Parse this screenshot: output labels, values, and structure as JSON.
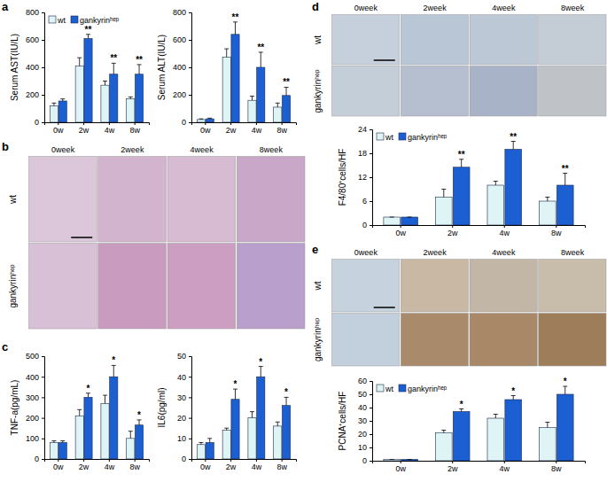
{
  "chart_data": [
    {
      "type": "bar",
      "y_label": "Serum AST(IU/L)",
      "categories": [
        "0w",
        "2w",
        "4w",
        "8w"
      ],
      "ylim": [
        0,
        800
      ],
      "yticks": [
        0,
        200,
        400,
        600,
        800
      ],
      "legend": "top-left",
      "series": [
        {
          "name": "wt",
          "color": "#dff4f5",
          "values": [
            120,
            410,
            270,
            170
          ],
          "errors": [
            20,
            60,
            30,
            15
          ]
        },
        {
          "name": "gankyrinʰᵉᵖ",
          "color": "#1c5fd3",
          "values": [
            155,
            610,
            350,
            350
          ],
          "errors": [
            15,
            30,
            80,
            70
          ],
          "annotations": [
            null,
            "**",
            "**",
            "**"
          ]
        }
      ]
    },
    {
      "type": "bar",
      "y_label": "Serum ALT(IU/L)",
      "categories": [
        "0w",
        "2w",
        "4w",
        "8w"
      ],
      "ylim": [
        0,
        800
      ],
      "yticks": [
        0,
        200,
        400,
        600,
        800
      ],
      "series": [
        {
          "name": "wt",
          "color": "#dff4f5",
          "values": [
            20,
            475,
            160,
            110
          ],
          "errors": [
            5,
            60,
            30,
            30
          ]
        },
        {
          "name": "gankyrinʰᵉᵖ",
          "color": "#1c5fd3",
          "values": [
            25,
            640,
            400,
            195
          ],
          "errors": [
            5,
            90,
            110,
            60
          ],
          "annotations": [
            null,
            "**",
            "**",
            "**"
          ]
        }
      ]
    },
    {
      "type": "bar",
      "y_label": "TNF-a(pg/mL)",
      "categories": [
        "0w",
        "2w",
        "4w",
        "8w"
      ],
      "ylim": [
        0,
        500
      ],
      "yticks": [
        0,
        100,
        200,
        300,
        400,
        500
      ],
      "series": [
        {
          "name": "wt",
          "color": "#dff4f5",
          "values": [
            80,
            210,
            270,
            100
          ],
          "errors": [
            8,
            30,
            40,
            35
          ]
        },
        {
          "name": "gankyrinʰᵉᵖ",
          "color": "#1c5fd3",
          "values": [
            80,
            300,
            400,
            165
          ],
          "errors": [
            8,
            20,
            55,
            25
          ],
          "annotations": [
            null,
            "*",
            "*",
            "*"
          ]
        }
      ]
    },
    {
      "type": "bar",
      "y_label": "IL6(pg/ml)",
      "categories": [
        "0w",
        "2w",
        "4w",
        "8w"
      ],
      "ylim": [
        0,
        50
      ],
      "yticks": [
        0,
        10,
        20,
        30,
        40,
        50
      ],
      "series": [
        {
          "name": "wt",
          "color": "#dff4f5",
          "values": [
            7,
            14,
            20,
            16
          ],
          "errors": [
            1,
            1,
            3,
            2
          ]
        },
        {
          "name": "gankyrinʰᵉᵖ",
          "color": "#1c5fd3",
          "values": [
            8,
            29,
            40,
            26
          ],
          "errors": [
            2,
            5,
            5,
            4
          ],
          "annotations": [
            null,
            "*",
            "*",
            "*"
          ]
        }
      ]
    },
    {
      "type": "bar",
      "y_label": "F4/80⁺cells/HF",
      "categories": [
        "0w",
        "2w",
        "4w",
        "8w"
      ],
      "ylim": [
        0,
        24
      ],
      "yticks": [
        0,
        6,
        12,
        18,
        24
      ],
      "legend": "top-left",
      "series": [
        {
          "name": "wt",
          "color": "#dff4f5",
          "values": [
            2,
            7,
            10,
            6
          ],
          "errors": [
            0,
            2,
            1,
            1
          ]
        },
        {
          "name": "gankyrinʰᵉᵖ",
          "color": "#1c5fd3",
          "values": [
            2,
            14.5,
            19,
            10
          ],
          "errors": [
            0,
            2,
            2,
            3
          ],
          "annotations": [
            null,
            "**",
            "**",
            "**"
          ]
        }
      ]
    },
    {
      "type": "bar",
      "y_label": "PCNA⁺cells/HF",
      "categories": [
        "0w",
        "2w",
        "4w",
        "8w"
      ],
      "ylim": [
        0,
        60
      ],
      "yticks": [
        0,
        10,
        20,
        30,
        40,
        50,
        60
      ],
      "legend": "top-left",
      "series": [
        {
          "name": "wt",
          "color": "#dff4f5",
          "values": [
            1,
            21,
            32,
            25
          ],
          "errors": [
            0,
            2,
            3,
            4
          ]
        },
        {
          "name": "gankyrinʰᵉᵖ",
          "color": "#1c5fd3",
          "values": [
            1,
            37,
            46,
            50
          ],
          "errors": [
            0,
            2,
            3,
            6
          ],
          "annotations": [
            null,
            "*",
            "*",
            "*"
          ]
        }
      ]
    }
  ],
  "panel_labels": [
    "a",
    "b",
    "c",
    "d",
    "e"
  ],
  "micrographs": [
    {
      "columns": [
        "0week",
        "2week",
        "4week",
        "8week"
      ],
      "rows": [
        "wt",
        "gankyrinʰᵉᵖ"
      ]
    },
    {
      "columns": [
        "0week",
        "2week",
        "4week",
        "8week"
      ],
      "rows": [
        "wt",
        "gankyrinʰᵉᵖ"
      ]
    },
    {
      "columns": [
        "0week",
        "2week",
        "4week",
        "8week"
      ],
      "rows": [
        "wt",
        "gankyrinʰᵉᵖ"
      ]
    }
  ]
}
